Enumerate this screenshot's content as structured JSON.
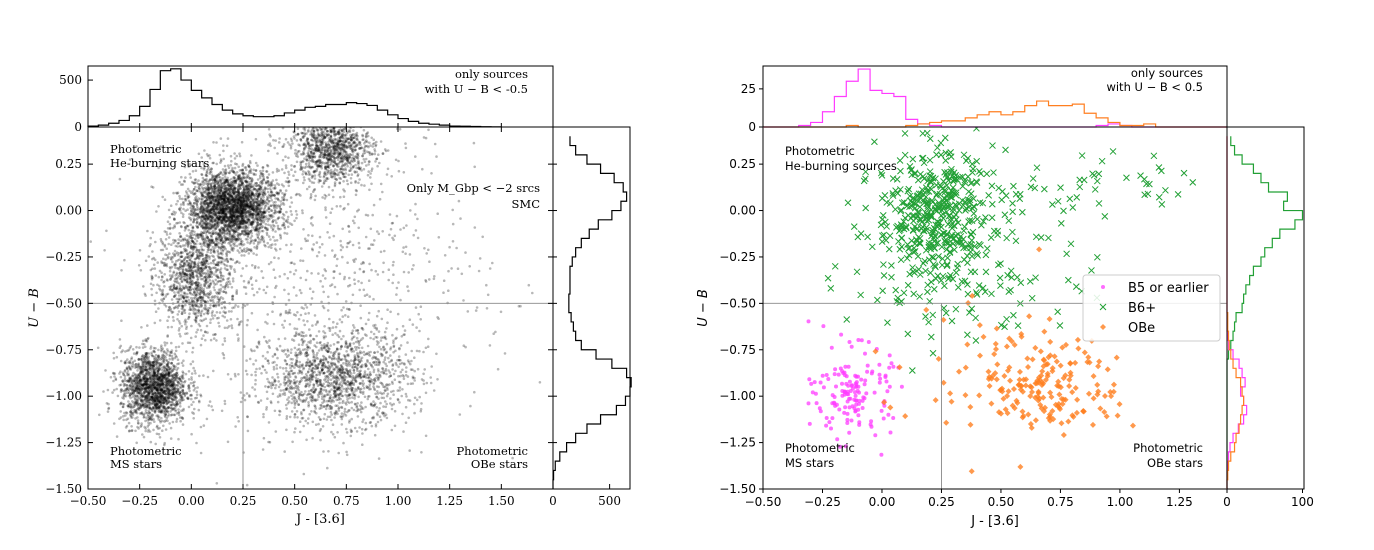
{
  "chart_data": [
    {
      "panel": "left-main",
      "type": "scatter",
      "xlabel": "J - [3.6]",
      "ylabel": "U − B",
      "xlim": [
        -0.5,
        1.75
      ],
      "ylim": [
        -1.5,
        0.45
      ],
      "xticks": [
        -0.5,
        -0.25,
        0.0,
        0.25,
        0.5,
        0.75,
        1.0,
        1.25,
        1.5
      ],
      "xtick_labels": [
        "−0.50",
        "−0.25",
        "0.00",
        "0.25",
        "0.50",
        "0.75",
        "1.00",
        "1.25",
        "1.50"
      ],
      "yticks": [
        -1.5,
        -1.25,
        -1.0,
        -0.75,
        -0.5,
        -0.25,
        0.0,
        0.25
      ],
      "ytick_labels": [
        "−1.50",
        "−1.25",
        "−1.00",
        "−0.75",
        "−0.50",
        "−0.25",
        "0.00",
        "0.25"
      ],
      "reference_lines": {
        "hline_y": -0.5,
        "vline_x": 0.25
      },
      "density_clumps": [
        {
          "x": 0.2,
          "y": 0.02,
          "sx": 0.11,
          "sy": 0.1,
          "weight": 0.3
        },
        {
          "x": 0.68,
          "y": 0.33,
          "sx": 0.1,
          "sy": 0.09,
          "weight": 0.12
        },
        {
          "x": 0.02,
          "y": -0.35,
          "sx": 0.09,
          "sy": 0.15,
          "weight": 0.13
        },
        {
          "x": -0.18,
          "y": -0.95,
          "sx": 0.08,
          "sy": 0.1,
          "weight": 0.2
        },
        {
          "x": 0.7,
          "y": -0.9,
          "sx": 0.18,
          "sy": 0.12,
          "weight": 0.15
        },
        {
          "x": 0.6,
          "y": -0.4,
          "sx": 0.4,
          "sy": 0.45,
          "weight": 0.1
        }
      ],
      "point_color": "#000000",
      "annotations": [
        {
          "lines": [
            "Photometric",
            "He-burning stars"
          ],
          "position": "top-left"
        },
        {
          "lines": [
            "Photometric",
            "MS stars"
          ],
          "position": "bottom-left"
        },
        {
          "lines": [
            "Photometric",
            "OBe stars"
          ],
          "position": "bottom-right"
        },
        {
          "lines": [
            "Only M_Gbp < −2 srcs",
            "SMC"
          ],
          "position": "upper-right"
        }
      ]
    },
    {
      "panel": "left-top-histogram",
      "type": "step-histogram",
      "bin_edges": [
        -0.5,
        -0.45,
        -0.4,
        -0.35,
        -0.3,
        -0.25,
        -0.2,
        -0.15,
        -0.1,
        -0.05,
        0.0,
        0.05,
        0.1,
        0.15,
        0.2,
        0.25,
        0.3,
        0.35,
        0.4,
        0.45,
        0.5,
        0.55,
        0.6,
        0.65,
        0.7,
        0.75,
        0.8,
        0.85,
        0.9,
        0.95,
        1.0,
        1.05,
        1.1,
        1.15,
        1.2,
        1.25,
        1.3,
        1.35,
        1.4,
        1.45,
        1.5
      ],
      "counts": [
        10,
        20,
        40,
        70,
        120,
        220,
        400,
        600,
        620,
        500,
        390,
        310,
        240,
        180,
        140,
        120,
        110,
        110,
        120,
        150,
        180,
        210,
        220,
        240,
        240,
        260,
        250,
        230,
        180,
        130,
        90,
        60,
        40,
        30,
        20,
        10,
        8,
        5,
        3,
        2
      ],
      "ylim": [
        0,
        650
      ],
      "yticks": [
        0,
        500
      ],
      "annotation_lines": [
        "only sources",
        "with U − B < -0.5"
      ],
      "color": "#000000"
    },
    {
      "panel": "left-right-histogram",
      "type": "step-histogram",
      "orientation": "horizontal",
      "bin_edges": [
        -1.5,
        -1.45,
        -1.4,
        -1.35,
        -1.3,
        -1.25,
        -1.2,
        -1.15,
        -1.1,
        -1.05,
        -1.0,
        -0.95,
        -0.9,
        -0.85,
        -0.8,
        -0.75,
        -0.7,
        -0.65,
        -0.6,
        -0.55,
        -0.5,
        -0.45,
        -0.4,
        -0.35,
        -0.3,
        -0.25,
        -0.2,
        -0.15,
        -0.1,
        -0.05,
        0.0,
        0.05,
        0.1,
        0.15,
        0.2,
        0.25,
        0.3,
        0.35,
        0.4
      ],
      "counts": [
        0,
        5,
        20,
        60,
        120,
        200,
        300,
        420,
        560,
        640,
        680,
        690,
        650,
        520,
        380,
        250,
        200,
        180,
        160,
        140,
        140,
        150,
        150,
        150,
        170,
        200,
        250,
        320,
        400,
        520,
        600,
        650,
        620,
        540,
        420,
        300,
        200,
        150
      ],
      "xlim": [
        0,
        680
      ],
      "xticks": [
        0,
        500
      ],
      "color": "#000000"
    },
    {
      "panel": "right-main",
      "type": "scatter",
      "xlabel": "J - [3.6]",
      "ylabel": "U − B",
      "xlim": [
        -0.5,
        1.45
      ],
      "ylim": [
        -1.5,
        0.45
      ],
      "xticks": [
        -0.5,
        -0.25,
        0.0,
        0.25,
        0.5,
        0.75,
        1.0,
        1.25
      ],
      "xtick_labels": [
        "−0.50",
        "−0.25",
        "0.00",
        "0.25",
        "0.50",
        "0.75",
        "1.00",
        "1.25"
      ],
      "yticks": [
        -1.5,
        -1.25,
        -1.0,
        -0.75,
        -0.5,
        -0.25,
        0.0,
        0.25
      ],
      "ytick_labels": [
        "−1.50",
        "−1.25",
        "−1.00",
        "−0.75",
        "−0.50",
        "−0.25",
        "0.00",
        "0.25"
      ],
      "reference_lines": {
        "hline_y": -0.5,
        "vline_x": 0.25
      },
      "series": [
        {
          "name": "B5 or earlier",
          "marker": "dot",
          "color": "#ff3cff",
          "clumps": [
            {
              "x": -0.12,
              "y": -0.98,
              "sx": 0.08,
              "sy": 0.12,
              "n": 150
            }
          ]
        },
        {
          "name": "B6+",
          "marker": "x",
          "color": "#22a035",
          "clumps": [
            {
              "x": 0.22,
              "y": -0.02,
              "sx": 0.12,
              "sy": 0.17,
              "n": 420
            },
            {
              "x": 0.35,
              "y": -0.35,
              "sx": 0.25,
              "sy": 0.2,
              "n": 120
            },
            {
              "x": 0.75,
              "y": 0.15,
              "sx": 0.3,
              "sy": 0.1,
              "n": 60
            }
          ]
        },
        {
          "name": "OBe",
          "marker": "diamond",
          "color": "#ff7f20",
          "clumps": [
            {
              "x": 0.7,
              "y": -0.95,
              "sx": 0.15,
              "sy": 0.12,
              "n": 170
            },
            {
              "x": 0.45,
              "y": -0.8,
              "sx": 0.25,
              "sy": 0.25,
              "n": 40
            }
          ]
        }
      ],
      "legend": {
        "placement": "center-right",
        "entries": [
          "B5 or earlier",
          "B6+",
          "OBe"
        ]
      },
      "annotations": [
        {
          "lines": [
            "Photometric",
            "He-burning sources"
          ],
          "position": "top-left"
        },
        {
          "lines": [
            "Photometric",
            "MS stars"
          ],
          "position": "bottom-left"
        },
        {
          "lines": [
            "Photometric",
            "OBe stars"
          ],
          "position": "bottom-right"
        }
      ]
    },
    {
      "panel": "right-top-histogram",
      "type": "step-histogram",
      "bin_edges": [
        -0.5,
        -0.45,
        -0.4,
        -0.35,
        -0.3,
        -0.25,
        -0.2,
        -0.15,
        -0.1,
        -0.05,
        0.0,
        0.05,
        0.1,
        0.15,
        0.2,
        0.25,
        0.3,
        0.35,
        0.4,
        0.45,
        0.5,
        0.55,
        0.6,
        0.65,
        0.7,
        0.75,
        0.8,
        0.85,
        0.9,
        0.95,
        1.0,
        1.05,
        1.1,
        1.15,
        1.2,
        1.25,
        1.3,
        1.35,
        1.4,
        1.45
      ],
      "series": [
        {
          "name": "B5 or earlier",
          "color": "#ff3cff",
          "counts": [
            0,
            0,
            0,
            1,
            3,
            10,
            20,
            30,
            38,
            24,
            22,
            20,
            5,
            2,
            1,
            0,
            0,
            0,
            0,
            0,
            0,
            0,
            0,
            0,
            0,
            0,
            0,
            0,
            1,
            2,
            1,
            0,
            0,
            0,
            0,
            0,
            0,
            0,
            0
          ]
        },
        {
          "name": "OBe",
          "color": "#ff7f20",
          "counts": [
            0,
            0,
            0,
            0,
            0,
            0,
            0,
            1,
            0,
            0,
            0,
            0,
            1,
            2,
            3,
            4,
            4,
            6,
            8,
            10,
            8,
            10,
            14,
            17,
            14,
            14,
            15,
            9,
            6,
            3,
            1,
            1,
            2,
            0,
            0,
            0,
            0,
            0,
            0
          ]
        }
      ],
      "ylim": [
        0,
        40
      ],
      "yticks": [
        0,
        25
      ],
      "annotation_lines": [
        "only sources",
        "with U − B < 0.5"
      ]
    },
    {
      "panel": "right-right-histogram",
      "type": "step-histogram",
      "orientation": "horizontal",
      "bin_edges": [
        -1.5,
        -1.45,
        -1.4,
        -1.35,
        -1.3,
        -1.25,
        -1.2,
        -1.15,
        -1.1,
        -1.05,
        -1.0,
        -0.95,
        -0.9,
        -0.85,
        -0.8,
        -0.75,
        -0.7,
        -0.65,
        -0.6,
        -0.55,
        -0.5,
        -0.45,
        -0.4,
        -0.35,
        -0.3,
        -0.25,
        -0.2,
        -0.15,
        -0.1,
        -0.05,
        0.0,
        0.05,
        0.1,
        0.15,
        0.2,
        0.25,
        0.3,
        0.35,
        0.4
      ],
      "series": [
        {
          "name": "B6+",
          "color": "#22a035",
          "counts": [
            0,
            0,
            0,
            0,
            0,
            0,
            0,
            0,
            0,
            0,
            0,
            0,
            0,
            0,
            2,
            5,
            8,
            10,
            12,
            20,
            22,
            25,
            30,
            35,
            45,
            50,
            60,
            70,
            90,
            100,
            75,
            80,
            55,
            45,
            35,
            20,
            10,
            5
          ]
        },
        {
          "name": "B5 or earlier",
          "color": "#ff3cff",
          "counts": [
            0,
            0,
            1,
            2,
            4,
            8,
            15,
            22,
            26,
            22,
            18,
            24,
            20,
            16,
            8,
            2,
            1,
            0,
            0,
            0,
            0,
            0,
            0,
            0,
            0,
            0,
            0,
            0,
            0,
            0,
            0,
            0,
            0,
            0,
            0,
            0,
            0,
            0
          ]
        },
        {
          "name": "OBe",
          "color": "#ff7f20",
          "counts": [
            0,
            1,
            2,
            5,
            10,
            12,
            16,
            18,
            20,
            22,
            20,
            18,
            12,
            8,
            5,
            3,
            2,
            1,
            1,
            0,
            0,
            0,
            0,
            0,
            0,
            0,
            0,
            0,
            0,
            0,
            0,
            0,
            0,
            0,
            0,
            0,
            0,
            0
          ]
        }
      ],
      "xlim": [
        0,
        102
      ],
      "xticks": [
        0,
        100
      ]
    }
  ]
}
